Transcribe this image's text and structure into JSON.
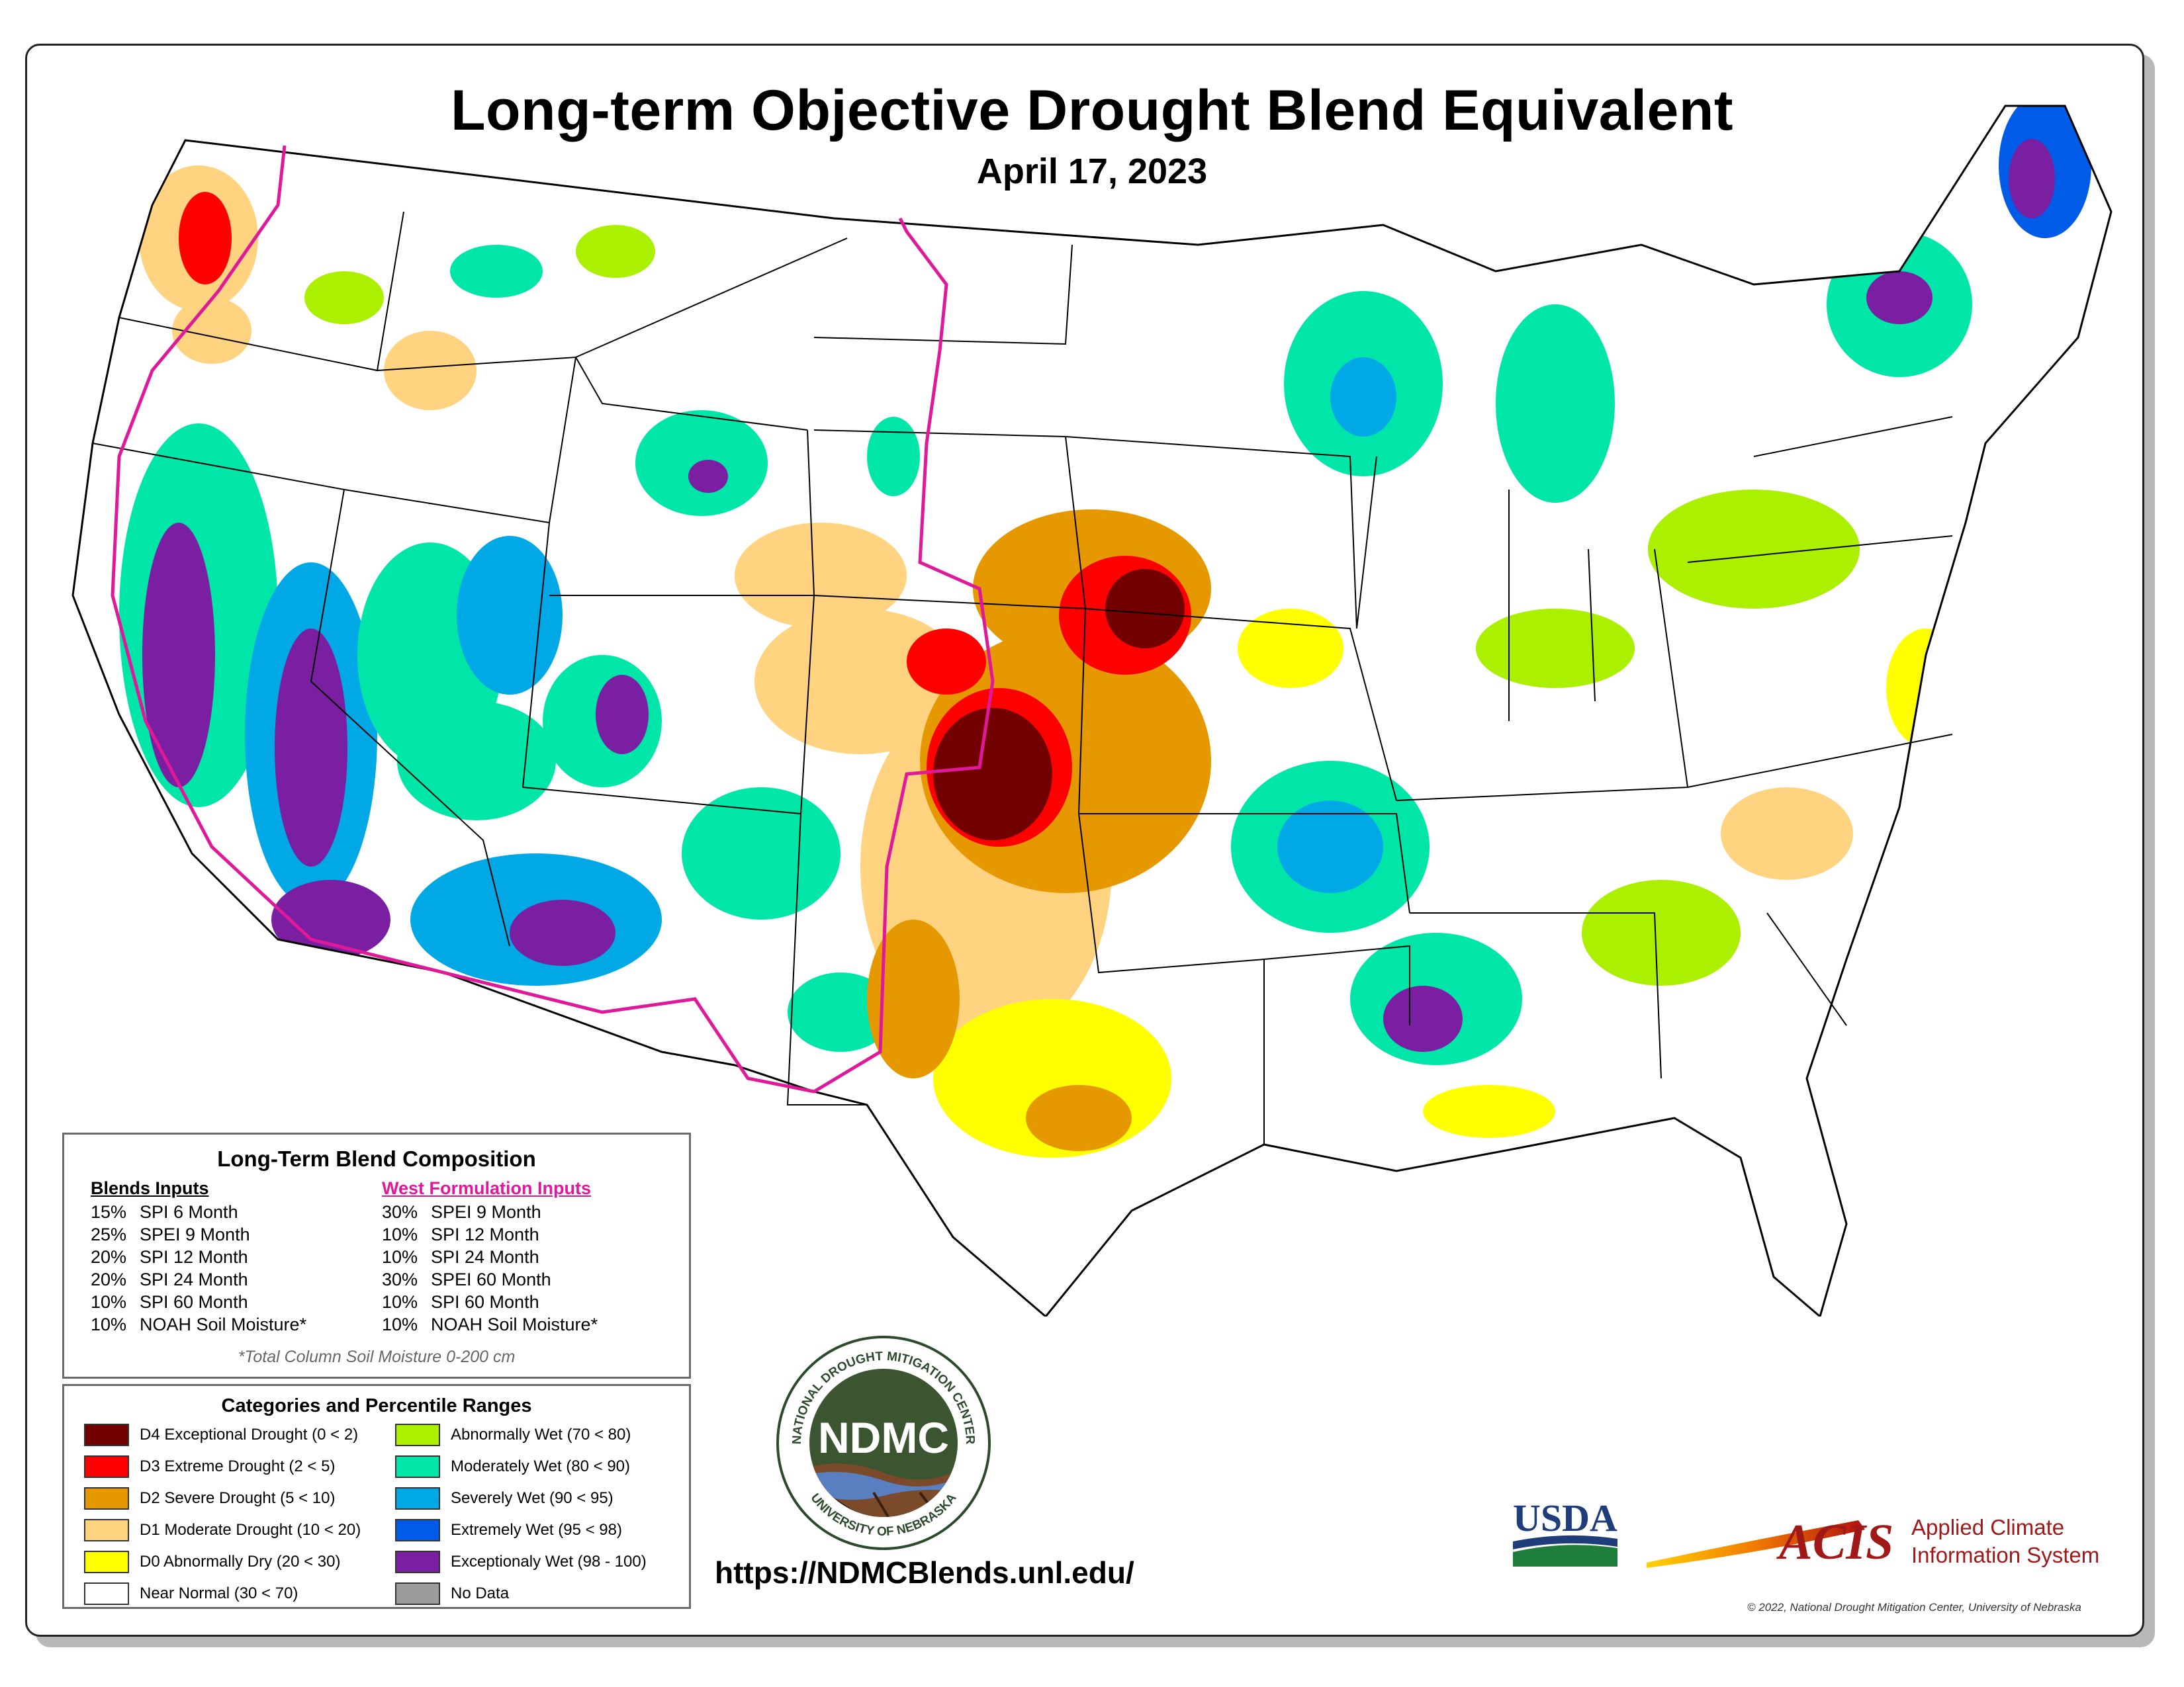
{
  "title": "Long-term Objective Drought Blend Equivalent",
  "date": "April 17, 2023",
  "composition": {
    "title": "Long-Term Blend Composition",
    "blends_header": "Blends Inputs",
    "blends": [
      {
        "pct": "15%",
        "label": "SPI 6 Month"
      },
      {
        "pct": "25%",
        "label": "SPEI 9 Month"
      },
      {
        "pct": "20%",
        "label": "SPI 12 Month"
      },
      {
        "pct": "20%",
        "label": "SPI 24 Month"
      },
      {
        "pct": "10%",
        "label": "SPI 60 Month"
      },
      {
        "pct": "10%",
        "label": "NOAH Soil Moisture*"
      }
    ],
    "west_header": "West Formulation Inputs",
    "west": [
      {
        "pct": "30%",
        "label": "SPEI 9 Month"
      },
      {
        "pct": "10%",
        "label": "SPI 12 Month"
      },
      {
        "pct": "10%",
        "label": "SPI 24 Month"
      },
      {
        "pct": "30%",
        "label": "SPEI 60 Month"
      },
      {
        "pct": "10%",
        "label": "SPI 60 Month"
      },
      {
        "pct": "10%",
        "label": "NOAH Soil Moisture*"
      }
    ],
    "footnote": "*Total Column Soil Moisture 0-200 cm"
  },
  "legend": {
    "title": "Categories and Percentile Ranges",
    "items": [
      {
        "label": "D4 Exceptional Drought (0 < 2)",
        "color": "#730000"
      },
      {
        "label": "D3 Extreme Drought (2 < 5)",
        "color": "#ff0000"
      },
      {
        "label": "D2 Severe Drought (5 < 10)",
        "color": "#e69800"
      },
      {
        "label": "D1 Moderate Drought (10 < 20)",
        "color": "#ffd37f"
      },
      {
        "label": "D0 Abnormally Dry (20 < 30)",
        "color": "#ffff00"
      },
      {
        "label": "Near Normal (30 < 70)",
        "color": "#ffffff"
      },
      {
        "label": "Abnormally Wet (70 < 80)",
        "color": "#aaf000"
      },
      {
        "label": "Moderately Wet (80 < 90)",
        "color": "#00e6a9"
      },
      {
        "label": "Severely Wet (90 < 95)",
        "color": "#00a9e6"
      },
      {
        "label": "Extremely Wet (95 < 98)",
        "color": "#005ce6"
      },
      {
        "label": "Exceptionaly Wet (98 - 100)",
        "color": "#7a1fa2"
      },
      {
        "label": "No Data",
        "color": "#9c9c9c"
      }
    ]
  },
  "ndmc_logo": {
    "text": "NDMC",
    "ring_top": "NATIONAL DROUGHT MITIGATION CENTER",
    "ring_bottom": "UNIVERSITY OF NEBRASKA"
  },
  "website": "https://NDMCBlends.unl.edu/",
  "usda_logo": {
    "text": "USDA"
  },
  "acis_logo": {
    "text": "ACIS",
    "line1": "Applied Climate",
    "line2": "Information System"
  },
  "copyright": "© 2022, National Drought Mitigation Center, University of Nebraska"
}
